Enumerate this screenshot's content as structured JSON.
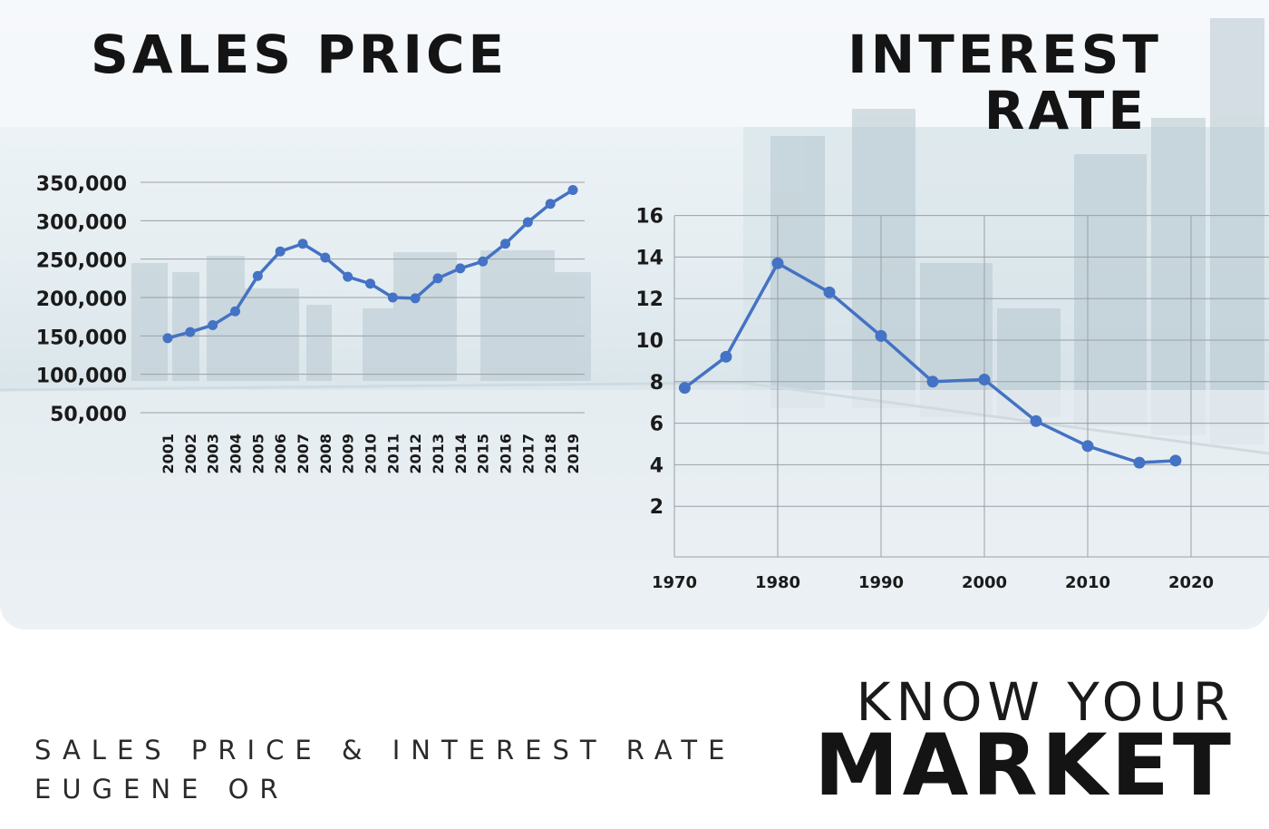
{
  "titles": {
    "sales": "SALES PRICE",
    "rate_line1": "INTEREST",
    "rate_line2": "RATE"
  },
  "footer": {
    "subtitle_line1": "SALES PRICE & INTEREST RATE",
    "subtitle_line2": "EUGENE OR",
    "headline_small": "KNOW YOUR",
    "headline_big": "MARKET"
  },
  "colors": {
    "line": "#4472c4",
    "grid": "#9aa0a6",
    "text": "#141414"
  },
  "chart_data": [
    {
      "type": "line",
      "title": "SALES PRICE",
      "categories": [
        "2001",
        "2002",
        "2003",
        "2004",
        "2005",
        "2006",
        "2007",
        "2008",
        "2009",
        "2010",
        "2011",
        "2012",
        "2013",
        "2014",
        "2015",
        "2016",
        "2017",
        "2018",
        "2019"
      ],
      "series": [
        {
          "values": [
            147000,
            155000,
            164000,
            182000,
            228000,
            260000,
            270000,
            252000,
            227000,
            218000,
            200000,
            199000,
            225000,
            238000,
            247000,
            270000,
            298000,
            322000,
            340000
          ]
        }
      ],
      "yticks": [
        "350,000",
        "300,000",
        "250,000",
        "200,000",
        "150,000",
        "100,000",
        "50,000"
      ],
      "ylim": [
        50000,
        350000
      ],
      "grid": true
    },
    {
      "type": "line",
      "title": "INTEREST RATE",
      "x": [
        1971,
        1975,
        1980,
        1985,
        1990,
        1995,
        2000,
        2005,
        2010,
        2015,
        2018.5
      ],
      "series": [
        {
          "values": [
            7.7,
            9.2,
            13.7,
            12.3,
            10.2,
            8.0,
            8.1,
            6.1,
            4.9,
            4.1,
            4.2
          ]
        }
      ],
      "xticks": [
        "1970",
        "1980",
        "1990",
        "2000",
        "2010",
        "2020"
      ],
      "yticks": [
        "16",
        "14",
        "12",
        "10",
        "8",
        "6",
        "4",
        "2"
      ],
      "grid": true
    }
  ]
}
